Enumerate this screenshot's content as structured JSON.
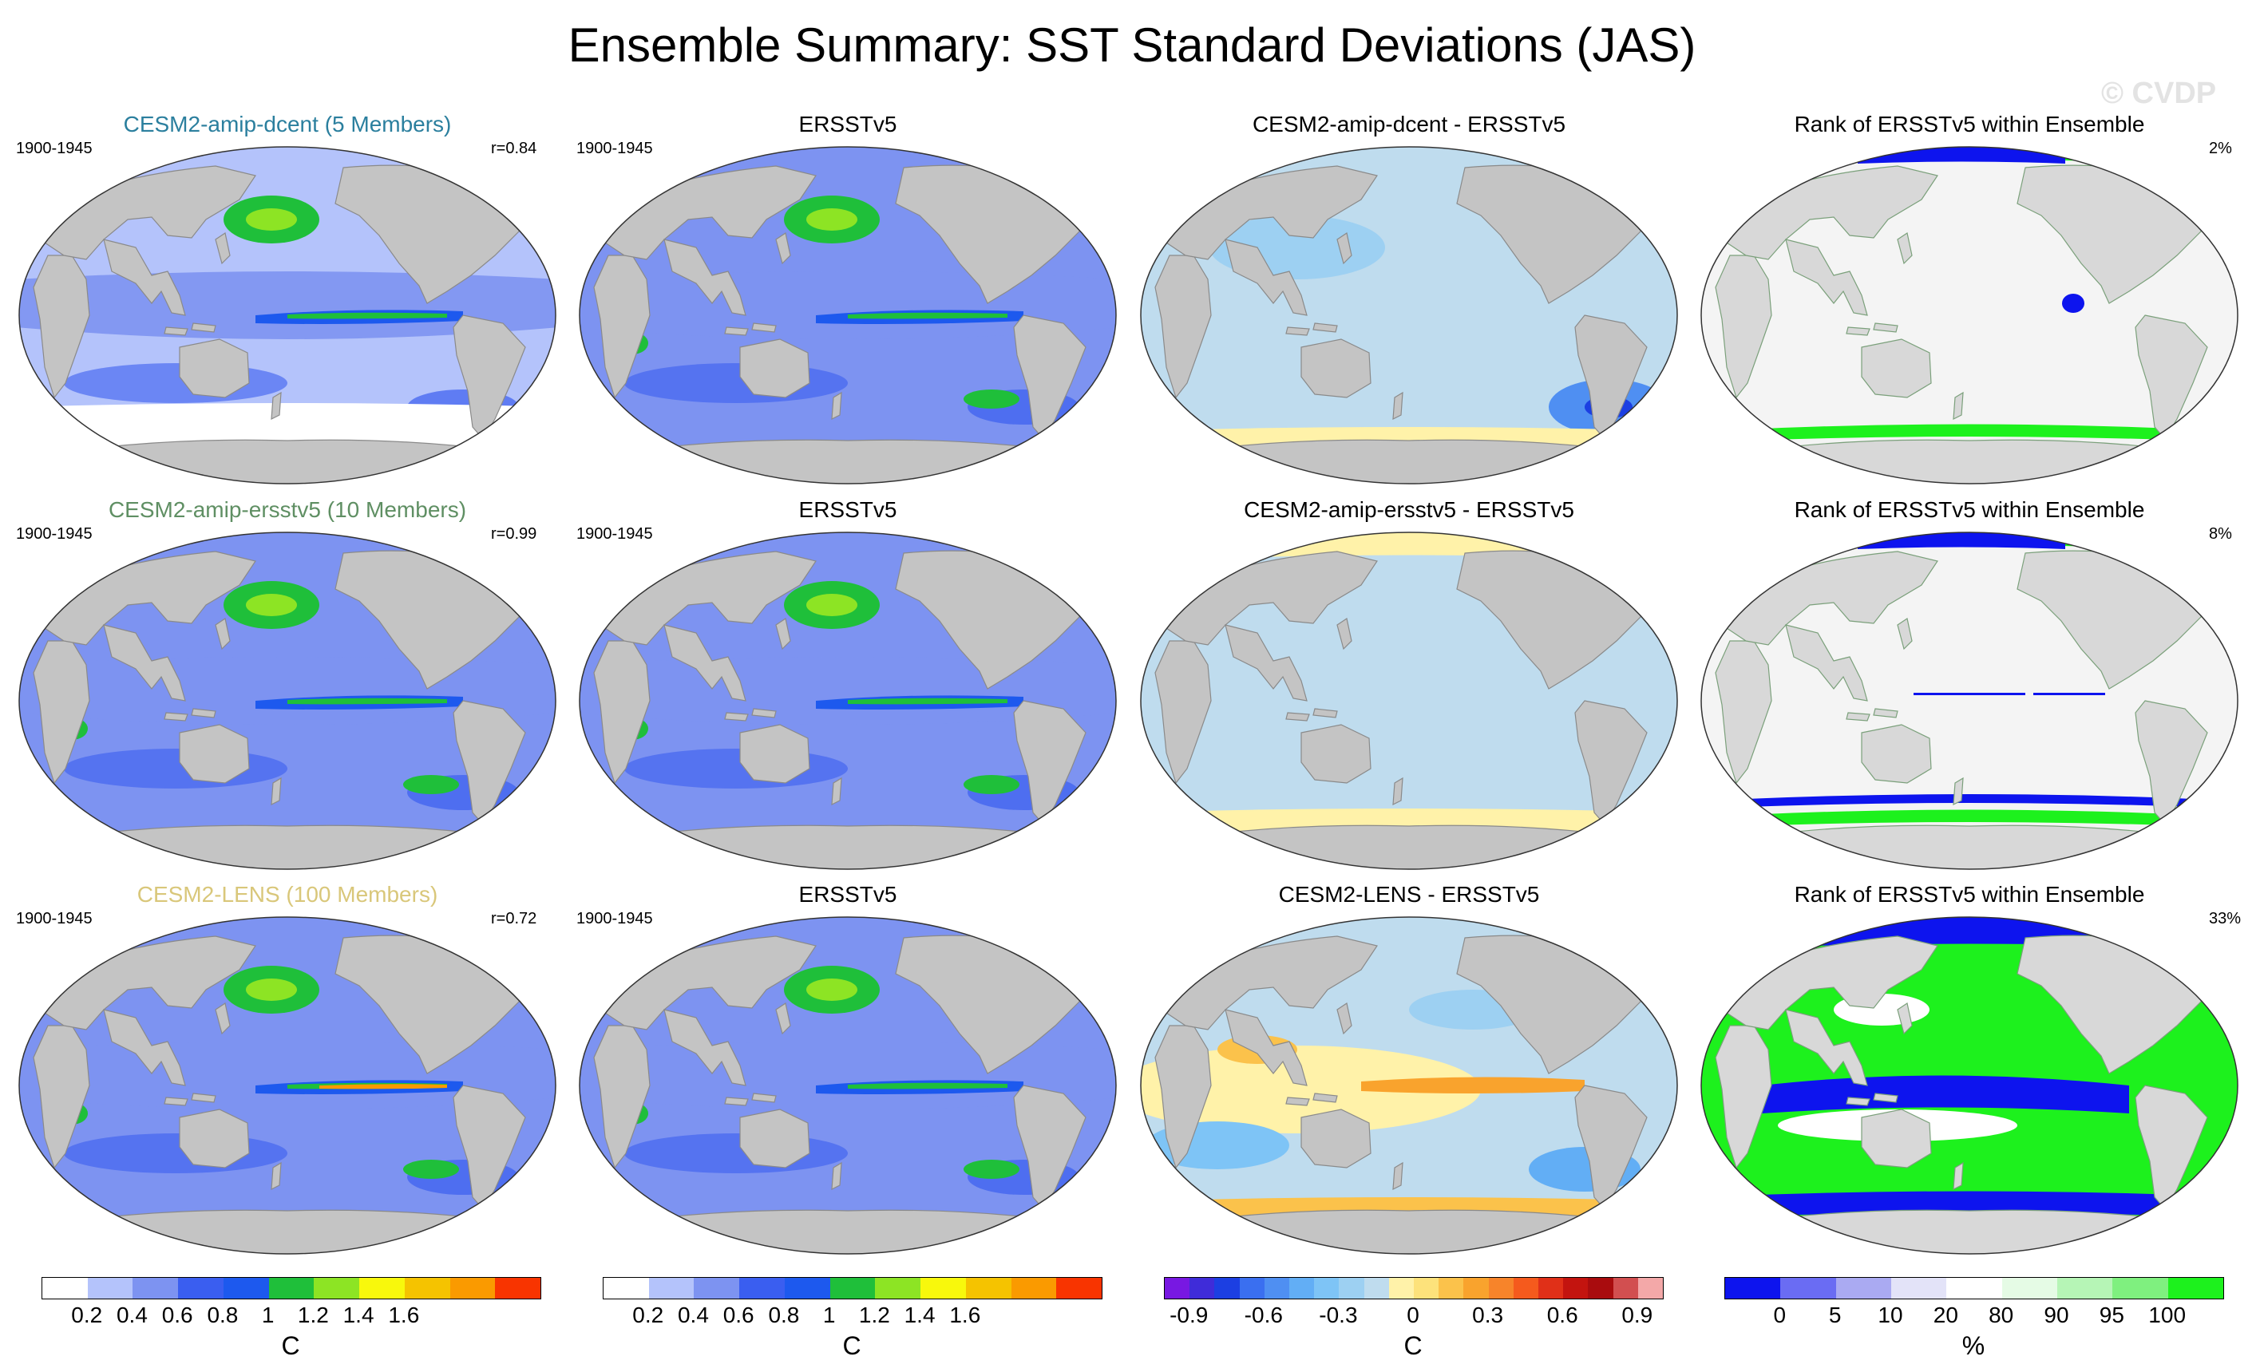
{
  "title": "Ensemble Summary: SST Standard Deviations (JAS)",
  "watermark": "© CVDP",
  "rows": [
    {
      "model": {
        "title": "CESM2-amip-dcent (5 Members)",
        "title_color": "#2b7f9e",
        "period": "1900-1945",
        "r": "r=0.84"
      },
      "obs": {
        "title": "ERSSTv5",
        "period": "1900-1945"
      },
      "diff": {
        "title": "CESM2-amip-dcent - ERSSTv5"
      },
      "rank": {
        "title": "Rank of ERSSTv5 within Ensemble",
        "pct": "2%"
      }
    },
    {
      "model": {
        "title": "CESM2-amip-ersstv5 (10 Members)",
        "title_color": "#5f8f63",
        "period": "1900-1945",
        "r": "r=0.99"
      },
      "obs": {
        "title": "ERSSTv5",
        "period": "1900-1945"
      },
      "diff": {
        "title": "CESM2-amip-ersstv5 - ERSSTv5"
      },
      "rank": {
        "title": "Rank of ERSSTv5 within Ensemble",
        "pct": "8%"
      }
    },
    {
      "model": {
        "title": "CESM2-LENS (100 Members)",
        "title_color": "#d9c77a",
        "period": "1900-1945",
        "r": "r=0.72"
      },
      "obs": {
        "title": "ERSSTv5",
        "period": "1900-1945"
      },
      "diff": {
        "title": "CESM2-LENS - ERSSTv5"
      },
      "rank": {
        "title": "Rank of ERSSTv5 within Ensemble",
        "pct": "33%"
      }
    }
  ],
  "colorbars": {
    "sd": {
      "colors": [
        "#ffffff",
        "#b4c3fb",
        "#7d93f1",
        "#3a5ef0",
        "#1d59ee",
        "#1fbf3a",
        "#8de424",
        "#f8f80c",
        "#f5c300",
        "#fa9a00",
        "#f83400"
      ],
      "ticks": [
        "0.2",
        "0.4",
        "0.6",
        "0.8",
        "1",
        "1.2",
        "1.4",
        "1.6"
      ],
      "unit": "C"
    },
    "diff": {
      "colors": [
        "#7818e2",
        "#3f2cd9",
        "#1c3fe2",
        "#3a6ff0",
        "#4f8ff2",
        "#62aef5",
        "#7ec4f6",
        "#9dd0f2",
        "#bfdcee",
        "#fff2a9",
        "#fde27b",
        "#fbc24b",
        "#f9a32d",
        "#f7842a",
        "#f55a1d",
        "#e03018",
        "#c3140f",
        "#a90c0e",
        "#d24f50",
        "#f3a8a8"
      ],
      "ticks": [
        "-0.9",
        "-0.6",
        "-0.3",
        "0",
        "0.3",
        "0.6",
        "0.9"
      ],
      "unit": "C"
    },
    "rank": {
      "colors": [
        "#0d14ee",
        "#6a6cf3",
        "#aaaaf2",
        "#e3e3f8",
        "#ffffff",
        "#e5fbe5",
        "#b6f5b6",
        "#7ff07f",
        "#1df11d"
      ],
      "ticks": [
        "0",
        "5",
        "10",
        "20",
        "80",
        "90",
        "95",
        "100"
      ],
      "unit": "%"
    }
  }
}
